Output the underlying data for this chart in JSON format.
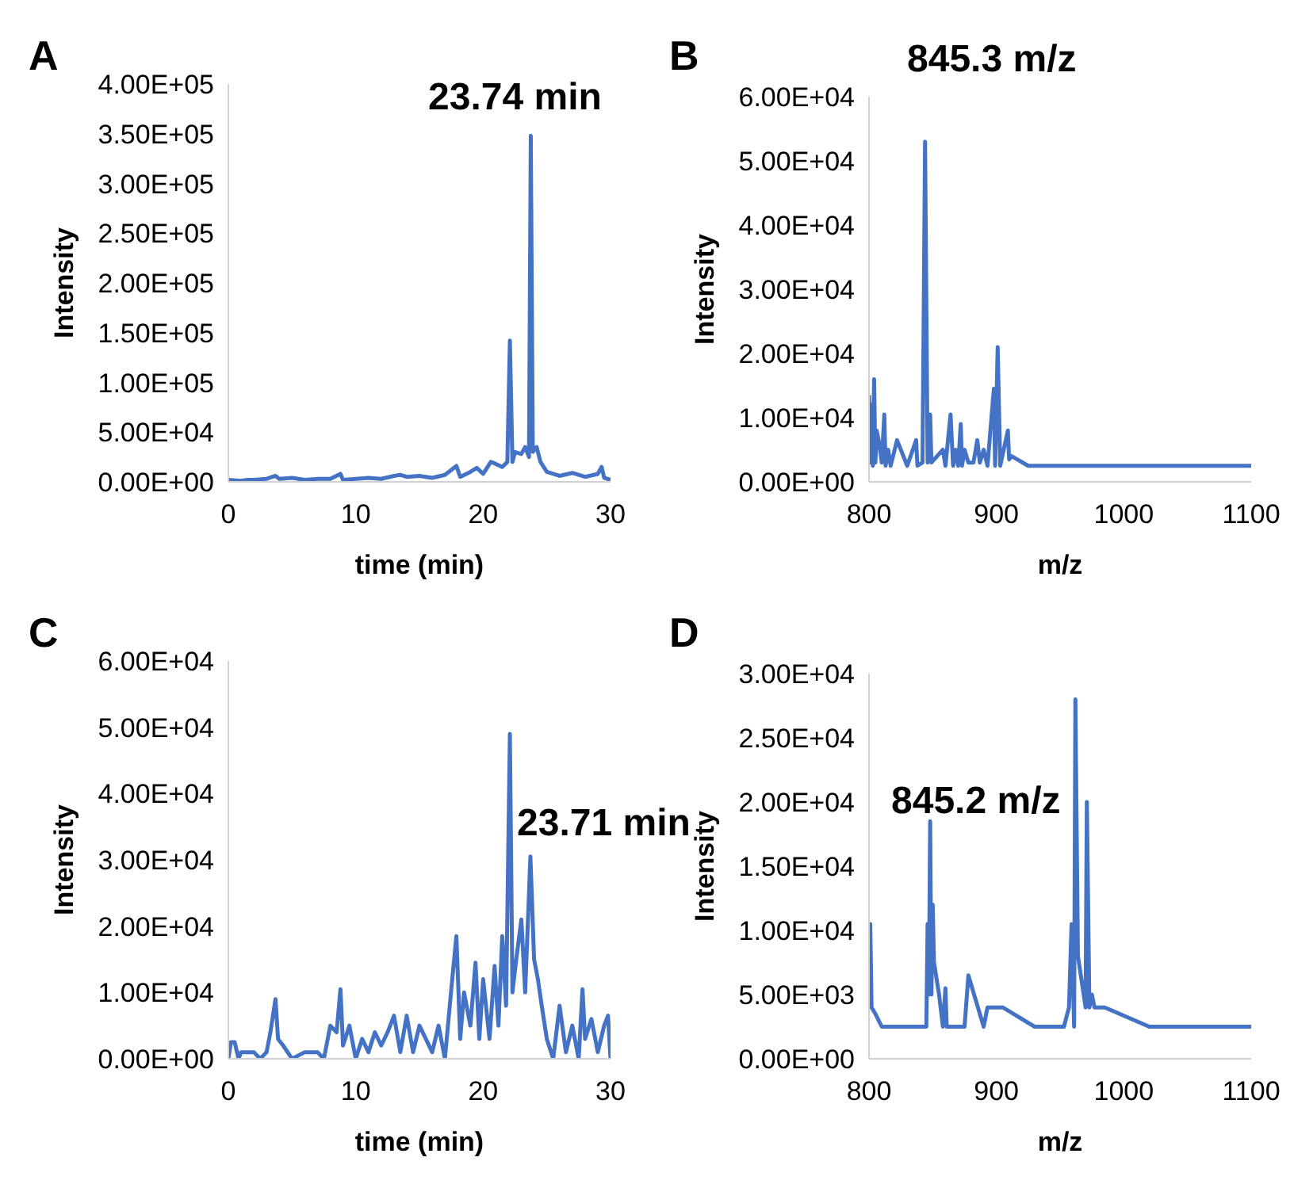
{
  "chart_data": [
    {
      "type": "line",
      "title": "A",
      "xlabel": "time (min)",
      "ylabel": "Intensity",
      "annotations": [
        "23.74 min"
      ],
      "color": "#4472c4",
      "line_style": "solid",
      "x": [
        0,
        1,
        1.5,
        2,
        3,
        3.7,
        4,
        5,
        6,
        7,
        8,
        8.8,
        9,
        10,
        11,
        12,
        13,
        13.5,
        14,
        15,
        16,
        17,
        17.9,
        18.2,
        19,
        19.5,
        20,
        20.6,
        21,
        21.5,
        21.9,
        22.1,
        22.3,
        22.5,
        23,
        23.3,
        23.6,
        23.74,
        23.9,
        24.2,
        24.5,
        25,
        25.5,
        26,
        27,
        28,
        29,
        29.3,
        29.5,
        30
      ],
      "values": [
        2000,
        1000,
        2000,
        2000,
        3000,
        6000,
        3000,
        4000,
        2000,
        3000,
        3000,
        8000,
        2000,
        3000,
        4000,
        3000,
        6000,
        7000,
        5000,
        6000,
        4000,
        7000,
        16000,
        5000,
        10000,
        14000,
        8000,
        20000,
        18000,
        15000,
        20000,
        142000,
        20000,
        30000,
        28000,
        35000,
        25000,
        348000,
        30000,
        35000,
        20000,
        10000,
        8000,
        6000,
        9000,
        5000,
        8000,
        15000,
        4000,
        2000
      ],
      "xlim": [
        0,
        30
      ],
      "xticks": [
        0,
        10,
        20,
        30
      ],
      "ylim": [
        0,
        400000
      ],
      "yticks": [
        {
          "value": 0,
          "label": "0.00E+00"
        },
        {
          "value": 50000,
          "label": "5.00E+04"
        },
        {
          "value": 100000,
          "label": "1.00E+05"
        },
        {
          "value": 150000,
          "label": "1.50E+05"
        },
        {
          "value": 200000,
          "label": "2.00E+05"
        },
        {
          "value": 250000,
          "label": "2.50E+05"
        },
        {
          "value": 300000,
          "label": "3.00E+05"
        },
        {
          "value": 350000,
          "label": "3.50E+05"
        },
        {
          "value": 400000,
          "label": "4.00E+05"
        }
      ]
    },
    {
      "type": "line",
      "title": "B",
      "xlabel": "m/z",
      "ylabel": "Intensity",
      "annotations": [
        "845.3 m/z"
      ],
      "color": "#4472c4",
      "line_style": "solid",
      "x": [
        800,
        801,
        802,
        803,
        804,
        805,
        806,
        808,
        810,
        812,
        813,
        815,
        817,
        822,
        830,
        837,
        838,
        842,
        844,
        846,
        848,
        849,
        858,
        860,
        864,
        866,
        868,
        870,
        872,
        873,
        875,
        878,
        882,
        885,
        887,
        890,
        893,
        898,
        899,
        901,
        903,
        909,
        910,
        912,
        925,
        1100
      ],
      "values": [
        13500,
        3000,
        12000,
        2500,
        16000,
        3000,
        8000,
        6000,
        3000,
        10500,
        2500,
        5000,
        2500,
        6500,
        2500,
        6500,
        2500,
        3000,
        53000,
        3000,
        10500,
        3000,
        5000,
        2500,
        10500,
        2500,
        5000,
        2500,
        9000,
        2500,
        5000,
        3000,
        3000,
        6500,
        3000,
        5000,
        2500,
        14500,
        2500,
        21000,
        2500,
        8000,
        3500,
        4000,
        2500,
        2500
      ],
      "xlim": [
        800,
        1100
      ],
      "xticks": [
        800,
        900,
        1000,
        1100
      ],
      "ylim": [
        0,
        60000
      ],
      "yticks": [
        {
          "value": 0,
          "label": "0.00E+00"
        },
        {
          "value": 10000,
          "label": "1.00E+04"
        },
        {
          "value": 20000,
          "label": "2.00E+04"
        },
        {
          "value": 30000,
          "label": "3.00E+04"
        },
        {
          "value": 40000,
          "label": "4.00E+04"
        },
        {
          "value": 50000,
          "label": "5.00E+04"
        },
        {
          "value": 60000,
          "label": "6.00E+04"
        }
      ]
    },
    {
      "type": "line",
      "title": "C",
      "xlabel": "time (min)",
      "ylabel": "Intensity",
      "annotations": [
        "23.71 min"
      ],
      "color": "#4472c4",
      "line_style": "solid",
      "x": [
        0,
        0.2,
        0.5,
        0.8,
        1,
        2,
        2.5,
        3,
        3.3,
        3.7,
        3.9,
        4.3,
        5,
        6,
        7,
        7.5,
        8,
        8.5,
        8.8,
        9,
        9.5,
        10,
        10.5,
        11,
        11.5,
        12,
        12.5,
        13,
        13.5,
        14,
        14.5,
        15,
        16,
        16.5,
        17,
        17.5,
        17.9,
        18.2,
        18.5,
        19,
        19.4,
        19.7,
        20,
        20.5,
        20.9,
        21.2,
        21.5,
        21.8,
        22.1,
        22.3,
        22.6,
        23,
        23.3,
        23.71,
        24,
        24.3,
        24.6,
        25,
        25.5,
        26,
        26.5,
        27,
        27.5,
        27.8,
        28,
        28.5,
        29,
        29.5,
        29.8,
        30
      ],
      "values": [
        0,
        2500,
        2500,
        0,
        1000,
        1000,
        0,
        1000,
        4000,
        9000,
        3000,
        2000,
        0,
        1000,
        1000,
        0,
        5000,
        4000,
        10500,
        2000,
        5000,
        0,
        3000,
        1000,
        4000,
        2000,
        4000,
        6500,
        1000,
        6500,
        1000,
        5000,
        1000,
        5000,
        0,
        10500,
        18500,
        3000,
        10000,
        5000,
        14500,
        3000,
        12000,
        3000,
        14000,
        5000,
        18500,
        8000,
        49000,
        10000,
        15000,
        21000,
        10000,
        30500,
        15000,
        12000,
        8000,
        3000,
        0,
        8000,
        1000,
        5000,
        0,
        10500,
        3000,
        6000,
        1000,
        5000,
        6500,
        0
      ],
      "xlim": [
        0,
        30
      ],
      "xticks": [
        0,
        10,
        20,
        30
      ],
      "ylim": [
        0,
        60000
      ],
      "yticks": [
        {
          "value": 0,
          "label": "0.00E+00"
        },
        {
          "value": 10000,
          "label": "1.00E+04"
        },
        {
          "value": 20000,
          "label": "2.00E+04"
        },
        {
          "value": 30000,
          "label": "3.00E+04"
        },
        {
          "value": 40000,
          "label": "4.00E+04"
        },
        {
          "value": 50000,
          "label": "5.00E+04"
        },
        {
          "value": 60000,
          "label": "6.00E+04"
        }
      ]
    },
    {
      "type": "line",
      "title": "D",
      "xlabel": "m/z",
      "ylabel": "Intensity",
      "annotations": [
        "845.2 m/z"
      ],
      "color": "#4472c4",
      "line_style": "solid",
      "x": [
        800,
        801,
        802,
        805,
        810,
        845,
        846,
        847,
        848,
        849,
        850,
        851,
        855,
        858,
        860,
        861,
        875,
        878,
        890,
        893,
        905,
        930,
        953,
        957,
        959,
        961,
        962,
        964,
        970,
        971,
        973,
        975,
        977,
        985,
        1020,
        1100
      ],
      "values": [
        8000,
        10500,
        4000,
        3500,
        2500,
        2500,
        10500,
        5000,
        18500,
        5000,
        12000,
        7500,
        5000,
        2500,
        5500,
        2500,
        2500,
        6500,
        2500,
        4000,
        4000,
        2500,
        2500,
        4000,
        10500,
        2500,
        28000,
        8000,
        4000,
        20000,
        4000,
        5000,
        4000,
        4000,
        2500,
        2500
      ],
      "xlim": [
        800,
        1100
      ],
      "xticks": [
        800,
        900,
        1000,
        1100
      ],
      "ylim": [
        0,
        30000
      ],
      "yticks": [
        {
          "value": 0,
          "label": "0.00E+00"
        },
        {
          "value": 5000,
          "label": "5.00E+03"
        },
        {
          "value": 10000,
          "label": "1.00E+04"
        },
        {
          "value": 15000,
          "label": "1.50E+04"
        },
        {
          "value": 20000,
          "label": "2.00E+04"
        },
        {
          "value": 25000,
          "label": "2.50E+04"
        },
        {
          "value": 30000,
          "label": "3.00E+04"
        }
      ]
    }
  ]
}
